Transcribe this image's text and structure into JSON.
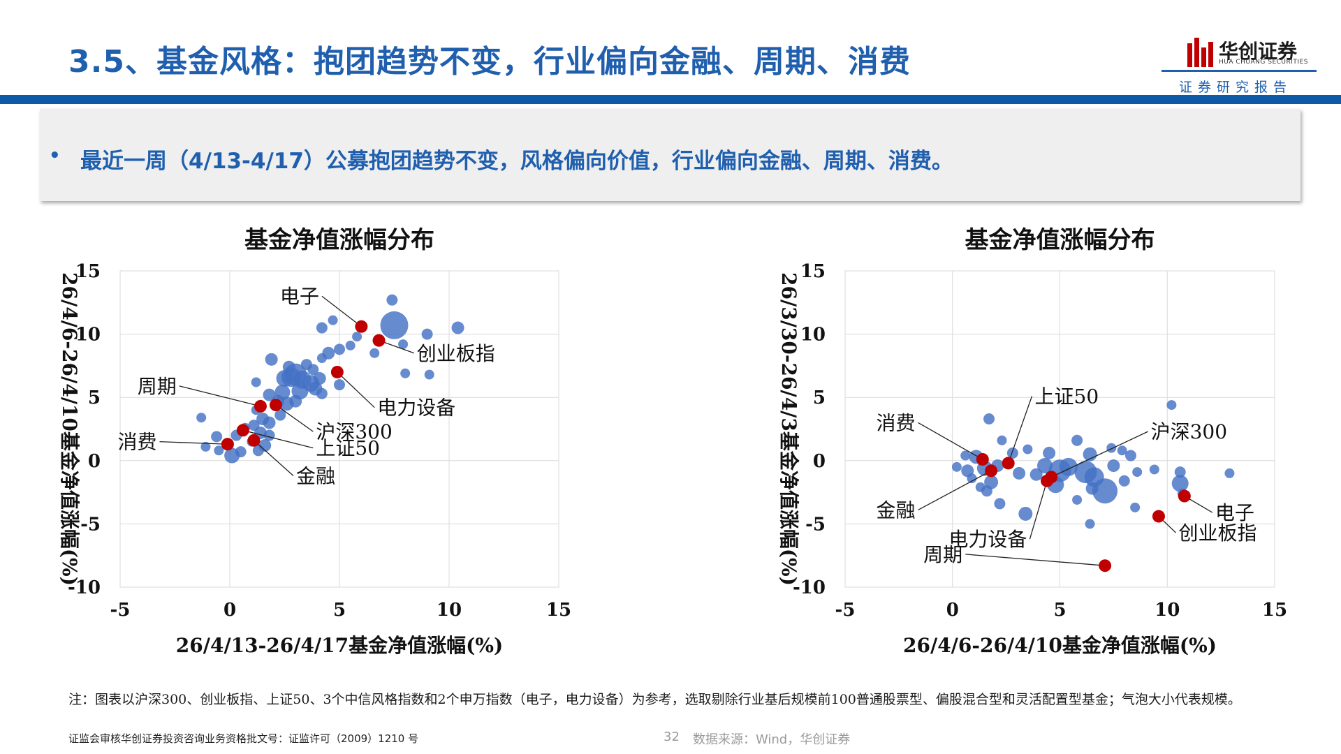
{
  "header": {
    "title": "3.5、基金风格：抱团趋势不变，行业偏向金融、周期、消费",
    "logo_name": "华创证券",
    "logo_sub": "HUA CHUANG SECURITIES",
    "report_tag": "证券研究报告",
    "accent_color": "#1f5fae"
  },
  "summary": {
    "bullet": "•",
    "text": "最近一周（4/13-4/17）公募抱团趋势不变，风格偏向价值，行业偏向金融、周期、消费。"
  },
  "note": "注：图表以沪深300、创业板指、上证50、3个中信风格指数和2个申万指数（电子，电力设备）为参考，选取剔除行业基后规模前100普通股票型、偏股混合型和灵活配置型基金；气泡大小代表规模。",
  "footer": {
    "license": "证监会审核华创证券投资咨询业务资格批文号：证监许可（2009）1210 号",
    "page": "32",
    "source": "数据来源：Wind，华创证券"
  },
  "chart_data": [
    {
      "type": "scatter",
      "title": "基金净值涨幅分布",
      "xlabel": "26/4/13-26/4/17基金净值涨幅(%)",
      "ylabel": "26/4/6-26/4/10基金净值涨幅(%)",
      "xlim": [
        -5,
        15
      ],
      "ylim": [
        -10,
        15
      ],
      "xticks": [
        "-5",
        "0",
        "5",
        "10",
        "15"
      ],
      "yticks": [
        "15",
        "10",
        "5",
        "0",
        "-5",
        "-10"
      ],
      "grid": true,
      "bubble_color": "#4472c4",
      "highlight_color": "#c00000",
      "funds": [
        {
          "x": 7.5,
          "y": 10.7,
          "s": 20
        },
        {
          "x": 7.4,
          "y": 12.7,
          "s": 8
        },
        {
          "x": 10.4,
          "y": 10.5,
          "s": 9
        },
        {
          "x": 9.0,
          "y": 10.0,
          "s": 8
        },
        {
          "x": 4.2,
          "y": 10.5,
          "s": 8
        },
        {
          "x": 4.7,
          "y": 11.1,
          "s": 7
        },
        {
          "x": 5.8,
          "y": 9.8,
          "s": 7
        },
        {
          "x": 5.5,
          "y": 9.1,
          "s": 7
        },
        {
          "x": 5.0,
          "y": 8.8,
          "s": 8
        },
        {
          "x": 4.5,
          "y": 8.5,
          "s": 9
        },
        {
          "x": 4.2,
          "y": 8.1,
          "s": 7
        },
        {
          "x": 6.6,
          "y": 8.5,
          "s": 7
        },
        {
          "x": 7.9,
          "y": 9.2,
          "s": 7
        },
        {
          "x": 9.1,
          "y": 6.8,
          "s": 7
        },
        {
          "x": 8.0,
          "y": 6.9,
          "s": 7
        },
        {
          "x": 1.9,
          "y": 8.0,
          "s": 9
        },
        {
          "x": 1.2,
          "y": 6.2,
          "s": 7
        },
        {
          "x": 1.2,
          "y": 4.0,
          "s": 7
        },
        {
          "x": 2.7,
          "y": 7.4,
          "s": 9
        },
        {
          "x": 2.5,
          "y": 6.5,
          "s": 12
        },
        {
          "x": 2.8,
          "y": 6.6,
          "s": 14
        },
        {
          "x": 3.0,
          "y": 6.8,
          "s": 16
        },
        {
          "x": 3.3,
          "y": 6.4,
          "s": 13
        },
        {
          "x": 3.7,
          "y": 6.1,
          "s": 12
        },
        {
          "x": 3.2,
          "y": 5.5,
          "s": 12
        },
        {
          "x": 3.9,
          "y": 5.7,
          "s": 10
        },
        {
          "x": 4.1,
          "y": 6.5,
          "s": 9
        },
        {
          "x": 2.4,
          "y": 5.4,
          "s": 11
        },
        {
          "x": 1.8,
          "y": 5.2,
          "s": 9
        },
        {
          "x": 2.2,
          "y": 4.7,
          "s": 9
        },
        {
          "x": 2.6,
          "y": 4.5,
          "s": 10
        },
        {
          "x": 3.0,
          "y": 4.7,
          "s": 9
        },
        {
          "x": 4.2,
          "y": 5.3,
          "s": 8
        },
        {
          "x": 5.0,
          "y": 6.0,
          "s": 8
        },
        {
          "x": 3.5,
          "y": 7.6,
          "s": 8
        },
        {
          "x": 3.8,
          "y": 7.2,
          "s": 8
        },
        {
          "x": 1.5,
          "y": 3.3,
          "s": 9
        },
        {
          "x": 2.3,
          "y": 3.6,
          "s": 8
        },
        {
          "x": 1.1,
          "y": 2.8,
          "s": 8
        },
        {
          "x": 1.4,
          "y": 2.2,
          "s": 9
        },
        {
          "x": 0.7,
          "y": 2.6,
          "s": 7
        },
        {
          "x": 1.8,
          "y": 2.0,
          "s": 8
        },
        {
          "x": 0.3,
          "y": 2.0,
          "s": 8
        },
        {
          "x": 1.0,
          "y": 1.5,
          "s": 7
        },
        {
          "x": 1.6,
          "y": 1.2,
          "s": 9
        },
        {
          "x": 1.3,
          "y": 0.8,
          "s": 8
        },
        {
          "x": -0.6,
          "y": 1.9,
          "s": 8
        },
        {
          "x": -0.1,
          "y": 1.3,
          "s": 9
        },
        {
          "x": -1.1,
          "y": 1.1,
          "s": 7
        },
        {
          "x": -1.3,
          "y": 3.4,
          "s": 7
        },
        {
          "x": 0.1,
          "y": 0.4,
          "s": 11
        },
        {
          "x": 0.5,
          "y": 0.7,
          "s": 8
        },
        {
          "x": -0.5,
          "y": 0.8,
          "s": 7
        },
        {
          "x": 1.8,
          "y": 3.0,
          "s": 9
        }
      ],
      "highlights": [
        {
          "name": "电子",
          "x": 6.0,
          "y": 10.6,
          "label_x": 4.2,
          "label_y": 13.0
        },
        {
          "name": "创业板指",
          "x": 6.8,
          "y": 9.5,
          "label_x": 8.4,
          "label_y": 8.5
        },
        {
          "name": "电力设备",
          "x": 4.9,
          "y": 7.0,
          "label_x": 6.6,
          "label_y": 4.2
        },
        {
          "name": "周期",
          "x": 1.4,
          "y": 4.3,
          "label_x": -2.3,
          "label_y": 5.9
        },
        {
          "name": "沪深300",
          "x": 2.1,
          "y": 4.4,
          "label_x": 3.8,
          "label_y": 2.3
        },
        {
          "name": "上证50",
          "x": 0.6,
          "y": 2.4,
          "label_x": 3.8,
          "label_y": 1.0
        },
        {
          "name": "金融",
          "x": 1.1,
          "y": 1.6,
          "label_x": 2.9,
          "label_y": -1.2
        },
        {
          "name": "消费",
          "x": -0.1,
          "y": 1.3,
          "label_x": -3.2,
          "label_y": 1.5
        }
      ]
    },
    {
      "type": "scatter",
      "title": "基金净值涨幅分布",
      "xlabel": "26/4/6-26/4/10基金净值涨幅(%)",
      "ylabel": "26/3/30-26/4/3基金净值涨幅(%)",
      "xlim": [
        -5,
        15
      ],
      "ylim": [
        -10,
        15
      ],
      "xticks": [
        "-5",
        "0",
        "5",
        "10",
        "15"
      ],
      "yticks": [
        "15",
        "10",
        "5",
        "0",
        "-5",
        "-10"
      ],
      "grid": true,
      "bubble_color": "#4472c4",
      "highlight_color": "#c00000",
      "funds": [
        {
          "x": 1.7,
          "y": 3.3,
          "s": 8
        },
        {
          "x": 10.2,
          "y": 4.4,
          "s": 7
        },
        {
          "x": 12.9,
          "y": -1.0,
          "s": 7
        },
        {
          "x": 10.6,
          "y": -1.8,
          "s": 12
        },
        {
          "x": 10.6,
          "y": -0.9,
          "s": 8
        },
        {
          "x": 10.7,
          "y": -2.6,
          "s": 7
        },
        {
          "x": 9.4,
          "y": -0.7,
          "s": 7
        },
        {
          "x": 8.6,
          "y": -0.9,
          "s": 7
        },
        {
          "x": 8.3,
          "y": 0.4,
          "s": 8
        },
        {
          "x": 8.5,
          "y": -3.7,
          "s": 7
        },
        {
          "x": 7.9,
          "y": 0.8,
          "s": 7
        },
        {
          "x": 7.5,
          "y": -0.4,
          "s": 9
        },
        {
          "x": 7.1,
          "y": -2.4,
          "s": 18
        },
        {
          "x": 6.6,
          "y": -1.3,
          "s": 14
        },
        {
          "x": 6.4,
          "y": 0.5,
          "s": 10
        },
        {
          "x": 6.2,
          "y": -0.9,
          "s": 16
        },
        {
          "x": 5.8,
          "y": 1.6,
          "s": 8
        },
        {
          "x": 5.4,
          "y": -0.5,
          "s": 13
        },
        {
          "x": 5.0,
          "y": -0.8,
          "s": 16
        },
        {
          "x": 4.8,
          "y": -1.9,
          "s": 12
        },
        {
          "x": 4.5,
          "y": 0.6,
          "s": 9
        },
        {
          "x": 4.3,
          "y": -0.4,
          "s": 11
        },
        {
          "x": 3.9,
          "y": -1.1,
          "s": 9
        },
        {
          "x": 3.5,
          "y": 0.9,
          "s": 7
        },
        {
          "x": 3.4,
          "y": -4.2,
          "s": 10
        },
        {
          "x": 3.1,
          "y": -1.0,
          "s": 9
        },
        {
          "x": 2.8,
          "y": 0.6,
          "s": 8
        },
        {
          "x": 2.3,
          "y": 1.6,
          "s": 7
        },
        {
          "x": 2.1,
          "y": -0.4,
          "s": 9
        },
        {
          "x": 2.2,
          "y": -3.4,
          "s": 8
        },
        {
          "x": 1.8,
          "y": -1.7,
          "s": 10
        },
        {
          "x": 1.5,
          "y": -0.6,
          "s": 11
        },
        {
          "x": 1.1,
          "y": 0.3,
          "s": 10
        },
        {
          "x": 0.7,
          "y": -0.8,
          "s": 9
        },
        {
          "x": 0.6,
          "y": 0.4,
          "s": 7
        },
        {
          "x": 0.9,
          "y": -1.4,
          "s": 7
        },
        {
          "x": 1.3,
          "y": -2.1,
          "s": 7
        },
        {
          "x": 1.6,
          "y": -2.4,
          "s": 8
        },
        {
          "x": 0.2,
          "y": -0.5,
          "s": 7
        },
        {
          "x": 6.4,
          "y": -5.0,
          "s": 7
        },
        {
          "x": 5.8,
          "y": -3.1,
          "s": 7
        },
        {
          "x": 6.5,
          "y": -2.2,
          "s": 9
        },
        {
          "x": 8.0,
          "y": -1.6,
          "s": 8
        },
        {
          "x": 7.4,
          "y": 1.0,
          "s": 7
        }
      ],
      "highlights": [
        {
          "name": "上证50",
          "x": 2.6,
          "y": -0.2,
          "label_x": 3.7,
          "label_y": 5.1
        },
        {
          "name": "消费",
          "x": 1.4,
          "y": 0.1,
          "label_x": -1.6,
          "label_y": 3.0
        },
        {
          "name": "沪深300",
          "x": 4.6,
          "y": -1.3,
          "label_x": 9.1,
          "label_y": 2.3
        },
        {
          "name": "金融",
          "x": 1.8,
          "y": -0.8,
          "label_x": -1.6,
          "label_y": -3.9
        },
        {
          "name": "电力设备",
          "x": 4.4,
          "y": -1.6,
          "label_x": 3.6,
          "label_y": -6.2
        },
        {
          "name": "周期",
          "x": 7.1,
          "y": -8.3,
          "label_x": 0.6,
          "label_y": -7.4
        },
        {
          "name": "电子",
          "x": 10.8,
          "y": -2.8,
          "label_x": 12.1,
          "label_y": -4.1
        },
        {
          "name": "创业板指",
          "x": 9.6,
          "y": -4.4,
          "label_x": 10.4,
          "label_y": -5.7
        }
      ]
    }
  ]
}
